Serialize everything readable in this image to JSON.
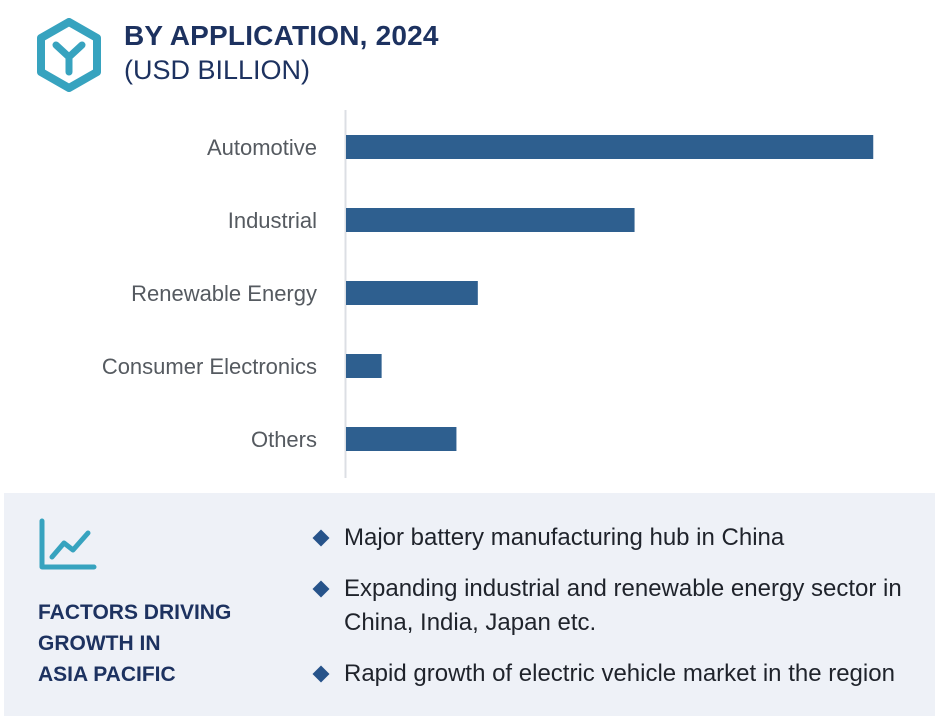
{
  "header": {
    "title": "BY APPLICATION, 2024",
    "subtitle": "(USD BILLION)"
  },
  "colors": {
    "bar": "#2e5f8f",
    "title": "#1d3260",
    "logo": "#37a3bf",
    "panel_bg": "#eef1f7",
    "bullet": "#26538a"
  },
  "icons": {
    "logo": "hexagon-y-logo-icon",
    "factors": "trend-line-chart-icon",
    "bullet": "diamond-bullet-icon"
  },
  "chart_data": {
    "type": "bar",
    "orientation": "horizontal",
    "categories": [
      "Automotive",
      "Industrial",
      "Renewable Energy",
      "Consumer Electronics",
      "Others"
    ],
    "values": [
      14.8,
      8.1,
      3.7,
      1.0,
      3.1
    ],
    "xlim": [
      0,
      16
    ],
    "axes_visible": false,
    "grid": false
  },
  "factors": {
    "title": "FACTORS DRIVING\nGROWTH IN\nASIA PACIFIC",
    "items": [
      "Major battery manufacturing hub in China",
      "Expanding industrial and renewable energy sector in China, India, Japan etc.",
      "Rapid growth of electric vehicle market in the region"
    ]
  }
}
